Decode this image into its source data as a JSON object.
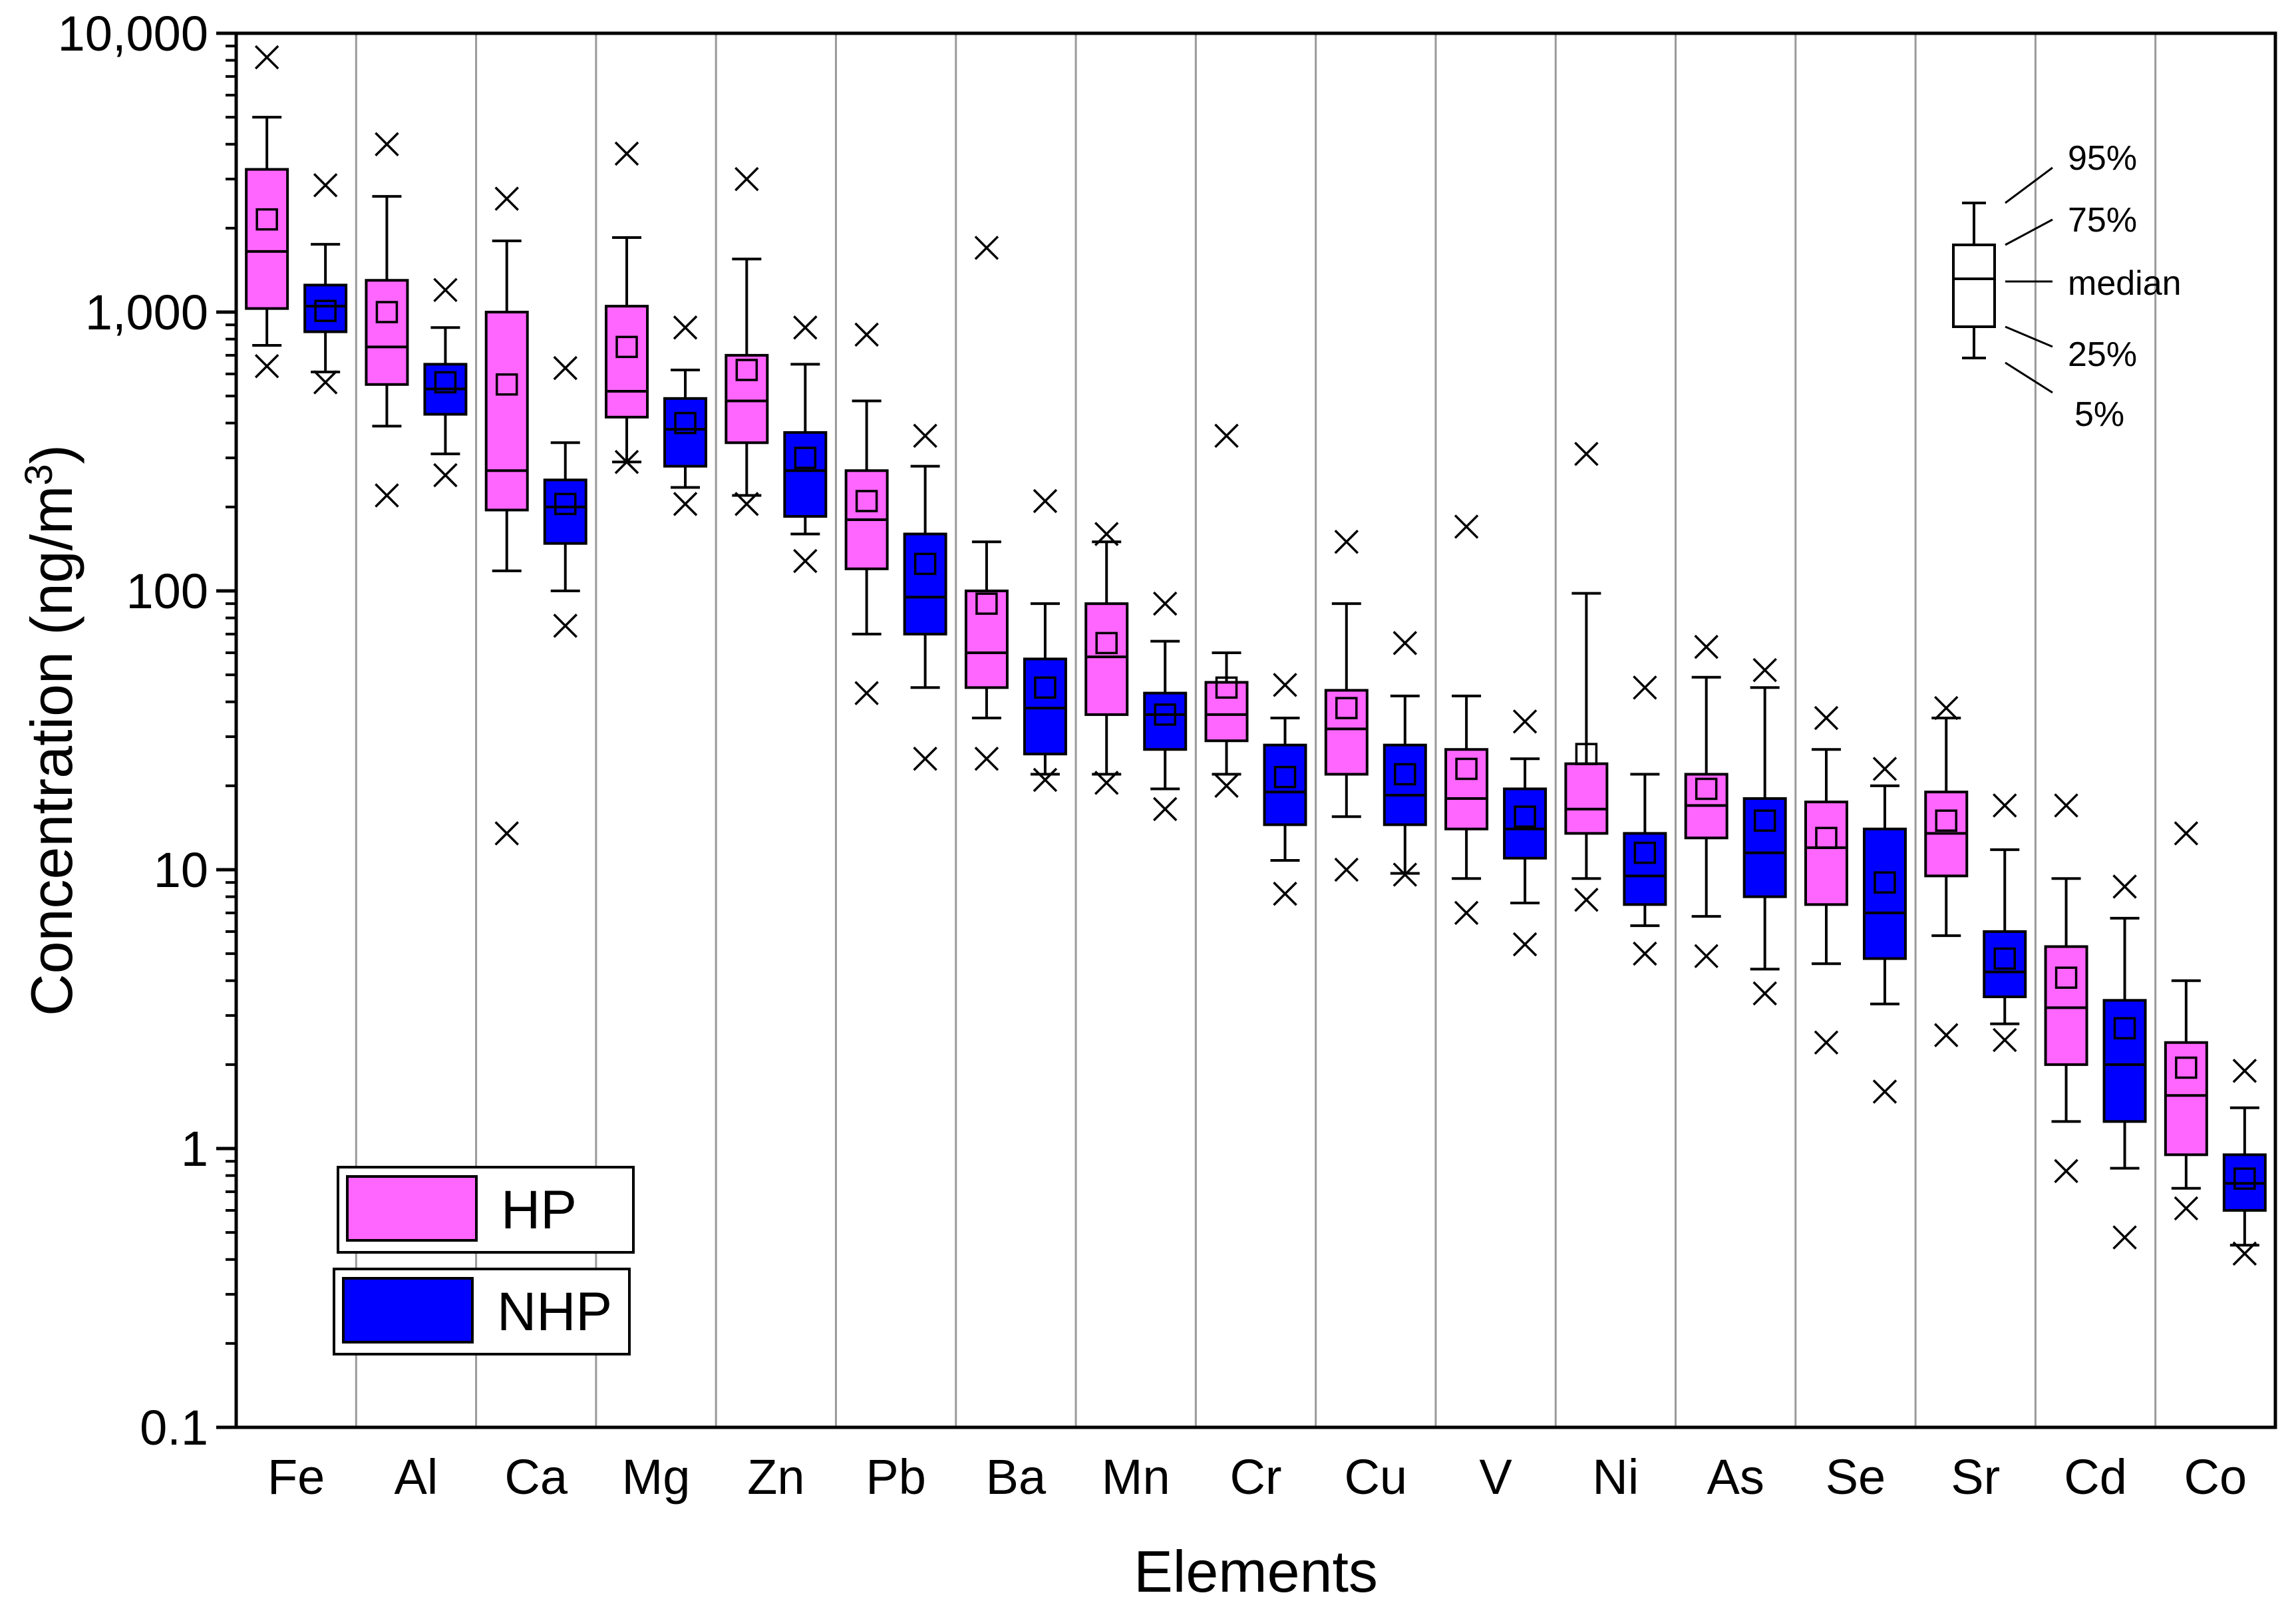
{
  "chart_data": {
    "type": "box",
    "title": "",
    "xlabel": "Elements",
    "ylabel": "Concentration (ng/m3)",
    "ylabel_parts": {
      "pre": "Concentration (ng/m",
      "sup": "3",
      "post": ")"
    },
    "yscale": "log",
    "ylim": [
      0.1,
      10000
    ],
    "yticks": [
      {
        "value": 0.1,
        "label": "0.1"
      },
      {
        "value": 1,
        "label": "1"
      },
      {
        "value": 10,
        "label": "10"
      },
      {
        "value": 100,
        "label": "100"
      },
      {
        "value": 1000,
        "label": "1,000"
      },
      {
        "value": 10000,
        "label": "10,000"
      }
    ],
    "categories": [
      "Fe",
      "Al",
      "Ca",
      "Mg",
      "Zn",
      "Pb",
      "Ba",
      "Mn",
      "Cr",
      "Cu",
      "V",
      "Ni",
      "As",
      "Se",
      "Sr",
      "Cd",
      "Co"
    ],
    "series": [
      {
        "name": "HP",
        "color": "#ff66ff",
        "boxes": [
          {
            "p5": 760,
            "q1": 1030,
            "median": 1650,
            "q3": 3250,
            "p95": 5000,
            "mean": 2150,
            "min": 640,
            "max": 8200
          },
          {
            "p5": 390,
            "q1": 550,
            "median": 750,
            "q3": 1300,
            "p95": 2600,
            "mean": 1000,
            "min": 220,
            "max": 4000
          },
          {
            "p5": 118,
            "q1": 195,
            "median": 270,
            "q3": 1000,
            "p95": 1800,
            "mean": 550,
            "min": 13.5,
            "max": 2550
          },
          {
            "p5": 290,
            "q1": 420,
            "median": 520,
            "q3": 1050,
            "p95": 1850,
            "mean": 750,
            "min": 290,
            "max": 3700
          },
          {
            "p5": 220,
            "q1": 340,
            "median": 480,
            "q3": 700,
            "p95": 1550,
            "mean": 620,
            "min": 205,
            "max": 3000
          },
          {
            "p5": 70,
            "q1": 120,
            "median": 180,
            "q3": 270,
            "p95": 480,
            "mean": 210,
            "min": 43,
            "max": 830
          },
          {
            "p5": 35,
            "q1": 45,
            "median": 60,
            "q3": 100,
            "p95": 150,
            "mean": 90,
            "min": 25,
            "max": 1700
          },
          {
            "p5": 22,
            "q1": 36,
            "median": 58,
            "q3": 90,
            "p95": 150,
            "mean": 65,
            "min": 20.5,
            "max": 160
          },
          {
            "p5": 22,
            "q1": 29,
            "median": 36,
            "q3": 47,
            "p95": 60,
            "mean": 45,
            "min": 20,
            "max": 360
          },
          {
            "p5": 15.5,
            "q1": 22,
            "median": 32,
            "q3": 44,
            "p95": 90,
            "mean": 38,
            "min": 10,
            "max": 150
          },
          {
            "p5": 9.3,
            "q1": 14,
            "median": 18,
            "q3": 27,
            "p95": 42,
            "mean": 23,
            "min": 7,
            "max": 170
          },
          {
            "p5": 9.3,
            "q1": 13.5,
            "median": 16.5,
            "q3": 24,
            "p95": 98,
            "mean": 26,
            "min": 7.8,
            "max": 310
          },
          {
            "p5": 6.8,
            "q1": 13,
            "median": 17,
            "q3": 22,
            "p95": 49,
            "mean": 19.5,
            "min": 4.9,
            "max": 63
          },
          {
            "p5": 4.6,
            "q1": 7.5,
            "median": 12,
            "q3": 17.5,
            "p95": 27,
            "mean": 13,
            "min": 2.4,
            "max": 35
          },
          {
            "p5": 5.8,
            "q1": 9.5,
            "median": 13.5,
            "q3": 19,
            "p95": 35,
            "mean": 15,
            "min": 2.55,
            "max": 38
          },
          {
            "p5": 1.25,
            "q1": 2,
            "median": 3.2,
            "q3": 5.3,
            "p95": 9.3,
            "mean": 4.1,
            "min": 0.83,
            "max": 17
          },
          {
            "p5": 0.72,
            "q1": 0.95,
            "median": 1.55,
            "q3": 2.4,
            "p95": 4,
            "mean": 1.95,
            "min": 0.61,
            "max": 13.5
          }
        ]
      },
      {
        "name": "NHP",
        "color": "#0000ff",
        "boxes": [
          {
            "p5": 610,
            "q1": 850,
            "median": 1050,
            "q3": 1250,
            "p95": 1750,
            "mean": 1010,
            "min": 560,
            "max": 2850
          },
          {
            "p5": 310,
            "q1": 430,
            "median": 530,
            "q3": 650,
            "p95": 880,
            "mean": 560,
            "min": 260,
            "max": 1200
          },
          {
            "p5": 100,
            "q1": 148,
            "median": 200,
            "q3": 250,
            "p95": 340,
            "mean": 205,
            "min": 75,
            "max": 630
          },
          {
            "p5": 235,
            "q1": 280,
            "median": 380,
            "q3": 490,
            "p95": 620,
            "mean": 400,
            "min": 205,
            "max": 880
          },
          {
            "p5": 160,
            "q1": 185,
            "median": 270,
            "q3": 370,
            "p95": 650,
            "mean": 300,
            "min": 128,
            "max": 880
          },
          {
            "p5": 45,
            "q1": 70,
            "median": 95,
            "q3": 160,
            "p95": 280,
            "mean": 125,
            "min": 25,
            "max": 360
          },
          {
            "p5": 22,
            "q1": 26,
            "median": 38,
            "q3": 57,
            "p95": 90,
            "mean": 45,
            "min": 21,
            "max": 210
          },
          {
            "p5": 19.5,
            "q1": 27,
            "median": 36,
            "q3": 43,
            "p95": 66,
            "mean": 36,
            "min": 16.5,
            "max": 90
          },
          {
            "p5": 10.8,
            "q1": 14.5,
            "median": 19,
            "q3": 28,
            "p95": 35,
            "mean": 21.5,
            "min": 8.2,
            "max": 46
          },
          {
            "p5": 9.7,
            "q1": 14.5,
            "median": 18.5,
            "q3": 28,
            "p95": 42,
            "mean": 22,
            "min": 9.6,
            "max": 65
          },
          {
            "p5": 7.6,
            "q1": 11,
            "median": 14,
            "q3": 19.5,
            "p95": 25,
            "mean": 15.5,
            "min": 5.4,
            "max": 34
          },
          {
            "p5": 6.3,
            "q1": 7.5,
            "median": 9.5,
            "q3": 13.5,
            "p95": 22,
            "mean": 11.5,
            "min": 5,
            "max": 45
          },
          {
            "p5": 4.4,
            "q1": 8,
            "median": 11.5,
            "q3": 18,
            "p95": 45,
            "mean": 15,
            "min": 3.6,
            "max": 52
          },
          {
            "p5": 3.3,
            "q1": 4.8,
            "median": 7,
            "q3": 14,
            "p95": 20,
            "mean": 9,
            "min": 1.6,
            "max": 23
          },
          {
            "p5": 2.8,
            "q1": 3.5,
            "median": 4.3,
            "q3": 6,
            "p95": 11.8,
            "mean": 4.8,
            "min": 2.45,
            "max": 17
          },
          {
            "p5": 0.85,
            "q1": 1.25,
            "median": 2,
            "q3": 3.4,
            "p95": 6.7,
            "mean": 2.7,
            "min": 0.48,
            "max": 8.7
          },
          {
            "p5": 0.45,
            "q1": 0.6,
            "median": 0.75,
            "q3": 0.95,
            "p95": 1.4,
            "mean": 0.78,
            "min": 0.42,
            "max": 1.9
          }
        ]
      }
    ],
    "legend": {
      "placement": "bottom-left",
      "items": [
        {
          "label": "HP",
          "color": "#ff66ff"
        },
        {
          "label": "NHP",
          "color": "#0000ff"
        }
      ]
    },
    "key": {
      "placement": "top-right",
      "labels": [
        "95%",
        "75%",
        "median",
        "25%",
        "5%"
      ]
    },
    "grid": "vertical separators between elements"
  }
}
